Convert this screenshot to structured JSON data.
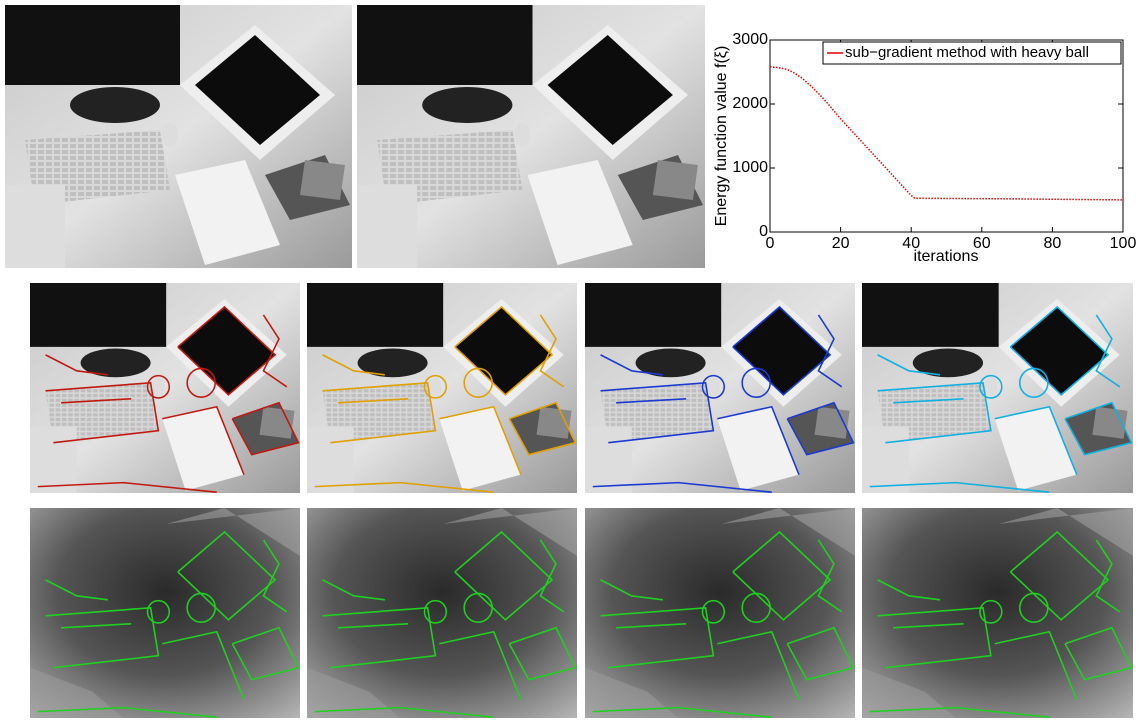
{
  "chart_data": {
    "type": "line",
    "ylabel": "Energy function value f(ξ)",
    "xlabel": "iterations",
    "xlim": [
      0,
      100
    ],
    "xticks": [
      0,
      20,
      40,
      60,
      80,
      100
    ],
    "ylim": [
      0,
      3000
    ],
    "yticks": [
      0,
      1000,
      2000,
      3000
    ],
    "legend": "upper right",
    "x": [
      0,
      1,
      2,
      3,
      4,
      5,
      6,
      7,
      8,
      9,
      10,
      11,
      12,
      13,
      14,
      15,
      16,
      17,
      18,
      19,
      20,
      21,
      22,
      23,
      24,
      25,
      26,
      27,
      28,
      29,
      30,
      31,
      32,
      33,
      34,
      35,
      36,
      37,
      38,
      39,
      40,
      41,
      42,
      43,
      44,
      45,
      46,
      47,
      48,
      49,
      50,
      51,
      52,
      53,
      54,
      55,
      56,
      57,
      58,
      59,
      60,
      61,
      62,
      63,
      64,
      65,
      66,
      67,
      68,
      69,
      70,
      71,
      72,
      73,
      74,
      75,
      76,
      77,
      78,
      79,
      80,
      81,
      82,
      83,
      84,
      85,
      86,
      87,
      88,
      89,
      90,
      91,
      92,
      93,
      94,
      95,
      96,
      97,
      98,
      99,
      100
    ],
    "series": [
      {
        "name": "sub−gradient method with heavy ball",
        "color": "#e00000",
        "values": [
          2580,
          2575,
          2570,
          2560,
          2550,
          2535,
          2510,
          2480,
          2445,
          2405,
          2360,
          2310,
          2260,
          2205,
          2150,
          2090,
          2030,
          1965,
          1900,
          1835,
          1770,
          1710,
          1650,
          1590,
          1530,
          1470,
          1410,
          1350,
          1290,
          1230,
          1170,
          1110,
          1050,
          990,
          930,
          870,
          810,
          750,
          690,
          630,
          570,
          530,
          528,
          527,
          526,
          526,
          525,
          525,
          525,
          524,
          524,
          524,
          523,
          523,
          523,
          522,
          522,
          522,
          521,
          521,
          521,
          520,
          520,
          520,
          519,
          519,
          519,
          518,
          518,
          517,
          517,
          516,
          516,
          515,
          515,
          514,
          514,
          513,
          513,
          512,
          512,
          511,
          511,
          510,
          510,
          509,
          509,
          508,
          508,
          507,
          507,
          506,
          506,
          505,
          505,
          504,
          504,
          503,
          503,
          502,
          502
        ]
      }
    ]
  }
}
